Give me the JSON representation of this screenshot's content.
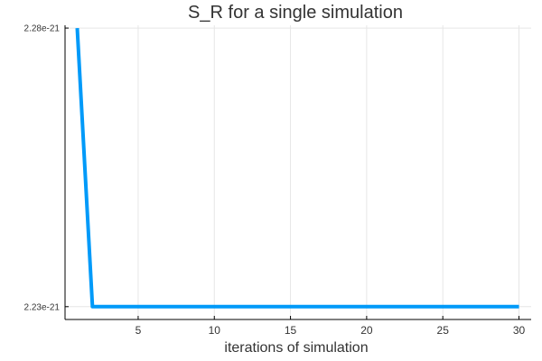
{
  "chart_data": {
    "type": "line",
    "title": "S_R for a single simulation",
    "xlabel": "iterations of simulation",
    "ylabel": "",
    "xlim": [
      0.2,
      30.8
    ],
    "ylim": [
      2.2277e-21,
      2.2805e-21
    ],
    "x_ticks": [
      {
        "value": 5,
        "label": "5"
      },
      {
        "value": 10,
        "label": "10"
      },
      {
        "value": 15,
        "label": "15"
      },
      {
        "value": 20,
        "label": "20"
      },
      {
        "value": 25,
        "label": "25"
      },
      {
        "value": 30,
        "label": "30"
      }
    ],
    "y_ticks": [
      {
        "value": 2.23e-21,
        "label": "2.23e-21"
      },
      {
        "value": 2.28e-21,
        "label": "2.28e-21"
      }
    ],
    "grid": true,
    "legend": "none",
    "series": [
      {
        "color": "#009af9",
        "x": [
          1,
          2,
          3,
          4,
          5,
          6,
          7,
          8,
          9,
          10,
          11,
          12,
          13,
          14,
          15,
          16,
          17,
          18,
          19,
          20,
          21,
          22,
          23,
          24,
          25,
          26,
          27,
          28,
          29,
          30
        ],
        "y": [
          2.28e-21,
          2.23e-21,
          2.23e-21,
          2.23e-21,
          2.23e-21,
          2.23e-21,
          2.23e-21,
          2.23e-21,
          2.23e-21,
          2.23e-21,
          2.23e-21,
          2.23e-21,
          2.23e-21,
          2.23e-21,
          2.23e-21,
          2.23e-21,
          2.23e-21,
          2.23e-21,
          2.23e-21,
          2.23e-21,
          2.23e-21,
          2.23e-21,
          2.23e-21,
          2.23e-21,
          2.23e-21,
          2.23e-21,
          2.23e-21,
          2.23e-21,
          2.23e-21,
          2.23e-21
        ]
      }
    ]
  }
}
